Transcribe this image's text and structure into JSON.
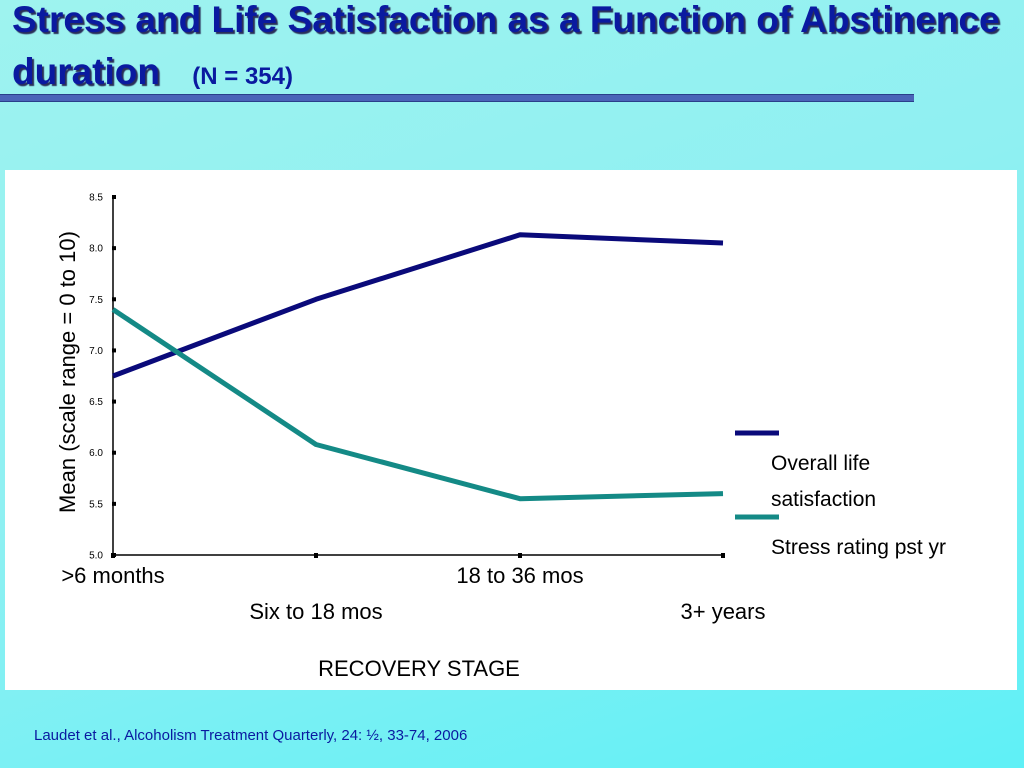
{
  "title": {
    "main": "Stress and Life Satisfaction as a Function of Abstinence duration",
    "sample": "(N = 354)"
  },
  "citation": "Laudet et al., Alcoholism Treatment Quarterly, 24: ½, 33-74, 2006",
  "colors": {
    "life_satisfaction": "#0a0a7a",
    "stress": "#148a86"
  },
  "chart_data": {
    "type": "line",
    "categories": [
      ">6 months",
      "Six to 18 mos",
      "18 to 36 mos",
      "3+ years"
    ],
    "xlabel": "RECOVERY STAGE",
    "ylabel": "Mean (scale range = 0 to 10)",
    "ylim": [
      5.0,
      8.5
    ],
    "yticks": [
      "5.0",
      "5.5",
      "6.0",
      "6.5",
      "7.0",
      "7.5",
      "8.0",
      "8.5"
    ],
    "grid": false,
    "legend_position": "right",
    "series": [
      {
        "name": "Overall life satisfaction",
        "values": [
          6.75,
          7.5,
          8.13,
          8.05
        ]
      },
      {
        "name": "Stress rating pst yr",
        "values": [
          7.4,
          6.08,
          5.55,
          5.6
        ]
      }
    ]
  }
}
